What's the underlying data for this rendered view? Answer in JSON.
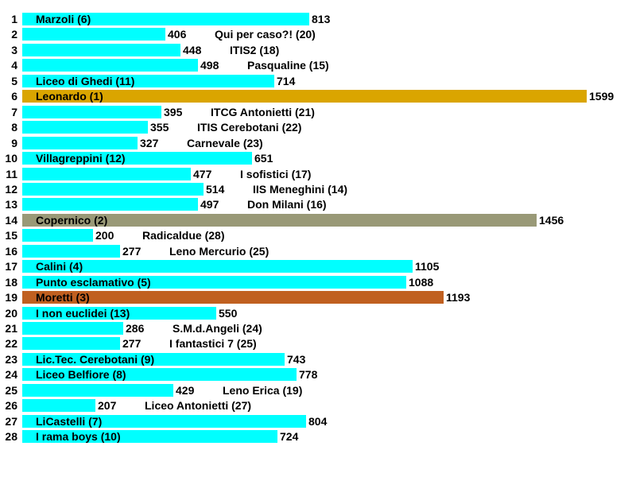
{
  "chart_data": {
    "type": "bar",
    "orientation": "horizontal",
    "xlim": [
      0,
      1599
    ],
    "grid": false,
    "colors": {
      "default": "#00FFFF",
      "rank1": "#DAA500",
      "rank2": "#999977",
      "rank3": "#C06020"
    },
    "rows": [
      {
        "index": "1",
        "name": "Marzoli (6)",
        "value": 813
      },
      {
        "index": "2",
        "name": "Qui per caso?! (20)",
        "value": 406
      },
      {
        "index": "3",
        "name": "ITIS2 (18)",
        "value": 448
      },
      {
        "index": "4",
        "name": "Pasqualine (15)",
        "value": 498
      },
      {
        "index": "5",
        "name": "Liceo di Ghedi (11)",
        "value": 714
      },
      {
        "index": "6",
        "name": "Leonardo (1)",
        "value": 1599,
        "color": "#DAA500"
      },
      {
        "index": "7",
        "name": "ITCG Antonietti (21)",
        "value": 395
      },
      {
        "index": "8",
        "name": "ITIS Cerebotani (22)",
        "value": 355
      },
      {
        "index": "9",
        "name": "Carnevale (23)",
        "value": 327
      },
      {
        "index": "10",
        "name": "Villagreppini (12)",
        "value": 651
      },
      {
        "index": "11",
        "name": "I sofistici (17)",
        "value": 477
      },
      {
        "index": "12",
        "name": "IIS Meneghini (14)",
        "value": 514
      },
      {
        "index": "13",
        "name": "Don Milani (16)",
        "value": 497
      },
      {
        "index": "14",
        "name": "Copernico (2)",
        "value": 1456,
        "color": "#999977"
      },
      {
        "index": "15",
        "name": "Radicaldue (28)",
        "value": 200
      },
      {
        "index": "16",
        "name": "Leno Mercurio (25)",
        "value": 277
      },
      {
        "index": "17",
        "name": "Calini (4)",
        "value": 1105
      },
      {
        "index": "18",
        "name": "Punto esclamativo (5)",
        "value": 1088
      },
      {
        "index": "19",
        "name": "Moretti (3)",
        "value": 1193,
        "color": "#C06020"
      },
      {
        "index": "20",
        "name": "I non euclidei (13)",
        "value": 550
      },
      {
        "index": "21",
        "name": "S.M.d.Angeli (24)",
        "value": 286
      },
      {
        "index": "22",
        "name": "I fantastici 7 (25)",
        "value": 277
      },
      {
        "index": "23",
        "name": "Lic.Tec. Cerebotani (9)",
        "value": 743
      },
      {
        "index": "24",
        "name": "Liceo Belfiore (8)",
        "value": 778
      },
      {
        "index": "25",
        "name": "Leno Erica (19)",
        "value": 429
      },
      {
        "index": "26",
        "name": "Liceo Antonietti (27)",
        "value": 207
      },
      {
        "index": "27",
        "name": "LiCastelli (7)",
        "value": 804
      },
      {
        "index": "28",
        "name": "I rama boys (10)",
        "value": 724
      }
    ]
  }
}
